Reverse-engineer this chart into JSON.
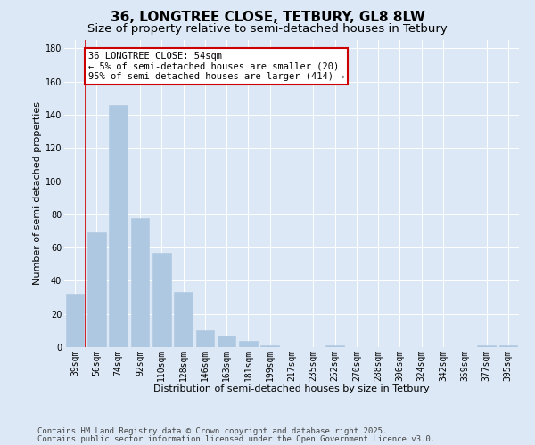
{
  "title": "36, LONGTREE CLOSE, TETBURY, GL8 8LW",
  "subtitle": "Size of property relative to semi-detached houses in Tetbury",
  "xlabel": "Distribution of semi-detached houses by size in Tetbury",
  "ylabel": "Number of semi-detached properties",
  "categories": [
    "39sqm",
    "56sqm",
    "74sqm",
    "92sqm",
    "110sqm",
    "128sqm",
    "146sqm",
    "163sqm",
    "181sqm",
    "199sqm",
    "217sqm",
    "235sqm",
    "252sqm",
    "270sqm",
    "288sqm",
    "306sqm",
    "324sqm",
    "342sqm",
    "359sqm",
    "377sqm",
    "395sqm"
  ],
  "values": [
    32,
    69,
    146,
    78,
    57,
    33,
    10,
    7,
    4,
    1,
    0,
    0,
    1,
    0,
    0,
    0,
    0,
    0,
    0,
    1,
    1
  ],
  "bar_color": "#adc8e0",
  "bar_edge_color": "#adc8e0",
  "vline_color": "#cc0000",
  "vline_x": 0.5,
  "annotation_text": "36 LONGTREE CLOSE: 54sqm\n← 5% of semi-detached houses are smaller (20)\n95% of semi-detached houses are larger (414) →",
  "annotation_box_facecolor": "#ffffff",
  "annotation_box_edgecolor": "#cc0000",
  "ylim": [
    0,
    185
  ],
  "yticks": [
    0,
    20,
    40,
    60,
    80,
    100,
    120,
    140,
    160,
    180
  ],
  "footer_line1": "Contains HM Land Registry data © Crown copyright and database right 2025.",
  "footer_line2": "Contains public sector information licensed under the Open Government Licence v3.0.",
  "bg_color": "#dce8f5",
  "plot_bg_color": "#dce8f5",
  "title_fontsize": 11,
  "subtitle_fontsize": 9.5,
  "axis_label_fontsize": 8,
  "tick_fontsize": 7,
  "annotation_fontsize": 7.5,
  "footer_fontsize": 6.5,
  "grid_color": "#ffffff"
}
